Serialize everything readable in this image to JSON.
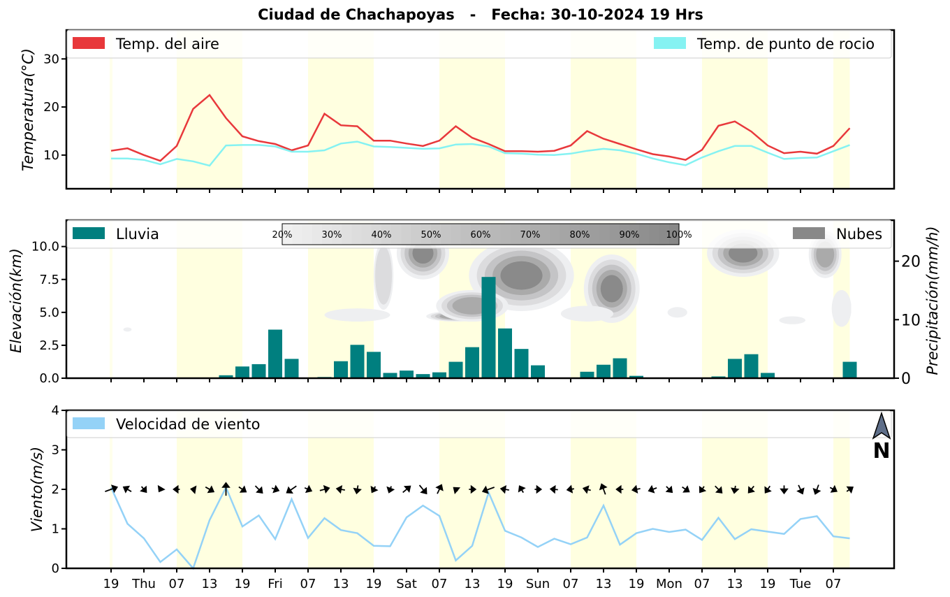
{
  "title": "Ciudad de Chachapoyas   -   Fecha: 30-10-2024 19 Hrs",
  "x_tick_labels": [
    "19",
    "Thu",
    "07",
    "13",
    "19",
    "Fri",
    "07",
    "13",
    "19",
    "Sat",
    "07",
    "13",
    "19",
    "Sun",
    "07",
    "13",
    "19",
    "Mon",
    "07",
    "13",
    "19",
    "Tue",
    "07"
  ],
  "colors": {
    "air_temp": "#e8383b",
    "dew_point": "#85f2f2",
    "rain": "#007f7f",
    "clouds": "#888888",
    "wind": "#94d2f7",
    "night_band": "#ffffe0",
    "north_arrow": "#5f6f8a"
  },
  "north_label": "N",
  "chart_data": [
    {
      "type": "line",
      "ylabel": "Temperatura(°C)",
      "ylim": [
        3,
        36
      ],
      "yticks": [
        "10",
        "20",
        "30"
      ],
      "grid": false,
      "legend": [
        "top-left",
        "top-right"
      ],
      "x_step_hours": 3,
      "series": [
        {
          "name": "Temp. del aire",
          "values": [
            10.9,
            11.4,
            10.0,
            8.8,
            11.9,
            19.6,
            22.5,
            17.7,
            13.9,
            12.9,
            12.3,
            11.0,
            12.0,
            18.6,
            16.2,
            16.0,
            13.0,
            13.0,
            12.4,
            11.9,
            13.0,
            16.0,
            13.6,
            12.3,
            10.8,
            10.8,
            10.7,
            10.9,
            12.0,
            15.0,
            13.4,
            12.3,
            11.2,
            10.2,
            9.7,
            9.0,
            11.1,
            16.1,
            17.0,
            14.9,
            12.0,
            10.4,
            10.7,
            10.3,
            11.9,
            15.6
          ]
        },
        {
          "name": "Temp. de punto de rocio",
          "values": [
            9.3,
            9.3,
            9.0,
            8.1,
            9.2,
            8.7,
            7.8,
            12.0,
            12.1,
            12.1,
            11.8,
            10.7,
            10.7,
            11.0,
            12.4,
            12.8,
            11.8,
            11.7,
            11.5,
            11.3,
            11.4,
            12.2,
            12.3,
            11.8,
            10.4,
            10.3,
            10.1,
            10.0,
            10.3,
            10.9,
            11.3,
            11.0,
            10.3,
            9.3,
            8.5,
            7.9,
            9.5,
            10.8,
            11.9,
            11.9,
            10.5,
            9.2,
            9.4,
            9.5,
            10.8,
            12.1
          ]
        }
      ]
    },
    {
      "type": "bar",
      "ylabel": "Elevación(km)",
      "ylabel_right": "Precipitación(mm/h)",
      "ylim": [
        0,
        12
      ],
      "yticks": [
        "0.0",
        "2.5",
        "5.0",
        "7.5",
        "10.0"
      ],
      "ylim_right": [
        0,
        27
      ],
      "yticks_right": [
        "0",
        "10",
        "20"
      ],
      "legend": [
        "top-left",
        "top-right"
      ],
      "colorbar_labels": [
        "20%",
        "30%",
        "40%",
        "50%",
        "60%",
        "70%",
        "80%",
        "90%",
        "100%"
      ],
      "series": [
        {
          "name": "Lluvia",
          "values": [
            0,
            0,
            0,
            0,
            0,
            0,
            0.1,
            0.5,
            2.0,
            2.4,
            8.3,
            3.3,
            0.1,
            0.2,
            2.9,
            5.7,
            4.5,
            0.9,
            1.3,
            0.7,
            1.0,
            2.8,
            5.3,
            17.3,
            8.5,
            5.0,
            2.2,
            0.1,
            0.1,
            1.1,
            2.3,
            3.4,
            0.4,
            0,
            0,
            0,
            0,
            0.3,
            3.3,
            4.1,
            0.9,
            0.1,
            0,
            0.1,
            0.1,
            2.8
          ]
        },
        {
          "name": "Nubes",
          "values": []
        }
      ]
    },
    {
      "type": "line",
      "ylabel": "Viento(m/s)",
      "ylim": [
        0,
        4
      ],
      "yticks": [
        "0",
        "1",
        "2",
        "3",
        "4"
      ],
      "legend": "top-left",
      "series": [
        {
          "name": "Velocidad de viento",
          "values": [
            2.05,
            1.13,
            0.76,
            0.16,
            0.48,
            0.0,
            1.22,
            2.05,
            1.06,
            1.34,
            0.74,
            1.75,
            0.77,
            1.27,
            0.97,
            0.89,
            0.57,
            0.56,
            1.29,
            1.59,
            1.33,
            0.2,
            0.57,
            1.92,
            0.95,
            0.78,
            0.54,
            0.75,
            0.61,
            0.78,
            1.59,
            0.6,
            0.89,
            1.0,
            0.92,
            0.98,
            0.72,
            1.28,
            0.74,
            0.99,
            0.93,
            0.87,
            1.25,
            1.32,
            0.81,
            0.76
          ]
        }
      ],
      "wind_direction_deg": [
        70,
        300,
        140,
        210,
        270,
        280,
        120,
        360,
        125,
        135,
        110,
        235,
        115,
        75,
        280,
        190,
        210,
        200,
        50,
        140,
        25,
        310,
        90,
        250,
        280,
        330,
        90,
        275,
        260,
        285,
        340,
        270,
        260,
        250,
        135,
        125,
        215,
        135,
        190,
        220,
        215,
        180,
        155,
        200,
        120,
        55
      ]
    }
  ]
}
